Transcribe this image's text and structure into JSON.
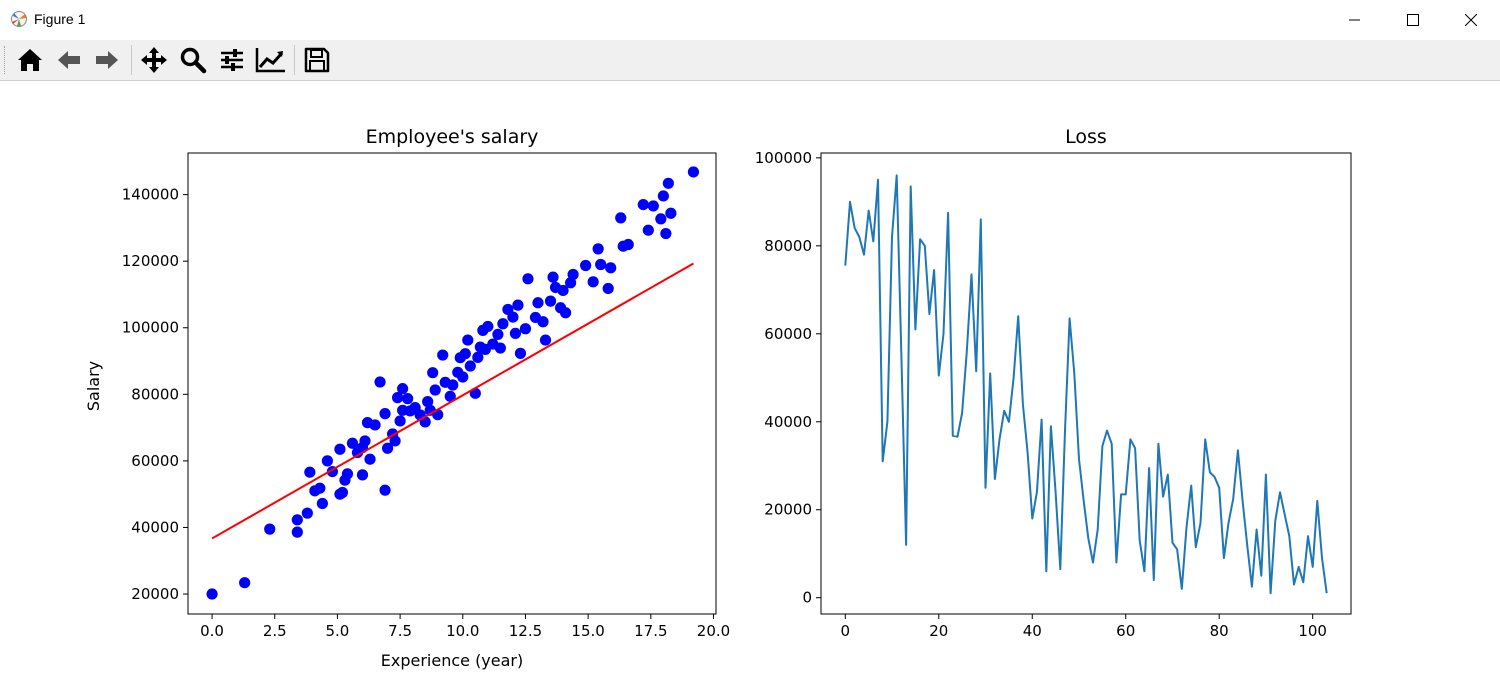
{
  "window": {
    "title": "Figure 1",
    "icons": {
      "app": "matplotlib-icon",
      "minimize": "minimize-icon",
      "maximize": "maximize-icon",
      "close": "close-icon"
    }
  },
  "toolbar": {
    "buttons": [
      {
        "name": "home",
        "icon": "home-icon"
      },
      {
        "name": "back",
        "icon": "arrow-left-icon"
      },
      {
        "name": "forward",
        "icon": "arrow-right-icon"
      },
      {
        "name": "pan",
        "icon": "move-icon"
      },
      {
        "name": "zoom",
        "icon": "magnifier-icon"
      },
      {
        "name": "configure-subplots",
        "icon": "sliders-icon"
      },
      {
        "name": "edit-axis",
        "icon": "line-chart-icon"
      },
      {
        "name": "save",
        "icon": "floppy-disk-icon"
      }
    ]
  },
  "chart_data": [
    {
      "type": "scatter",
      "title": "Employee's salary",
      "xlabel": "Experience (year)",
      "ylabel": "Salary",
      "xlim": [
        -0.96,
        20.1
      ],
      "ylim": [
        14000,
        152500
      ],
      "xticks": [
        0.0,
        2.5,
        5.0,
        7.5,
        10.0,
        12.5,
        15.0,
        17.5,
        20.0
      ],
      "xtick_labels": [
        "0.0",
        "2.5",
        "5.0",
        "7.5",
        "10.0",
        "12.5",
        "15.0",
        "17.5",
        "20.0"
      ],
      "yticks": [
        20000,
        40000,
        60000,
        80000,
        100000,
        120000,
        140000
      ],
      "ytick_labels": [
        "20000",
        "40000",
        "60000",
        "80000",
        "100000",
        "120000",
        "140000"
      ],
      "grid": false,
      "colors": {
        "points": "#0000ff",
        "line": "#ff0000"
      },
      "points": [
        [
          0.0,
          20000
        ],
        [
          1.3,
          23400
        ],
        [
          2.3,
          39500
        ],
        [
          3.4,
          38600
        ],
        [
          3.4,
          42300
        ],
        [
          3.8,
          44300
        ],
        [
          3.9,
          56600
        ],
        [
          4.1,
          51000
        ],
        [
          4.3,
          51800
        ],
        [
          4.4,
          47200
        ],
        [
          4.6,
          60000
        ],
        [
          4.8,
          56800
        ],
        [
          5.1,
          50000
        ],
        [
          5.1,
          63500
        ],
        [
          5.2,
          50500
        ],
        [
          5.3,
          54200
        ],
        [
          5.4,
          56100
        ],
        [
          5.6,
          65300
        ],
        [
          5.8,
          62500
        ],
        [
          6.0,
          64000
        ],
        [
          6.0,
          55800
        ],
        [
          6.1,
          66000
        ],
        [
          6.2,
          71500
        ],
        [
          6.3,
          60500
        ],
        [
          6.5,
          70800
        ],
        [
          6.7,
          83700
        ],
        [
          6.9,
          74200
        ],
        [
          6.9,
          51200
        ],
        [
          7.0,
          63800
        ],
        [
          7.2,
          68100
        ],
        [
          7.3,
          66000
        ],
        [
          7.4,
          79000
        ],
        [
          7.5,
          72000
        ],
        [
          7.6,
          75200
        ],
        [
          7.6,
          81700
        ],
        [
          7.8,
          78700
        ],
        [
          7.9,
          75000
        ],
        [
          8.1,
          76000
        ],
        [
          8.3,
          73800
        ],
        [
          8.5,
          71700
        ],
        [
          8.6,
          77800
        ],
        [
          8.7,
          75200
        ],
        [
          8.8,
          86500
        ],
        [
          8.9,
          81300
        ],
        [
          9.0,
          73900
        ],
        [
          9.2,
          91800
        ],
        [
          9.3,
          83600
        ],
        [
          9.5,
          79400
        ],
        [
          9.6,
          82800
        ],
        [
          9.8,
          86600
        ],
        [
          9.9,
          91000
        ],
        [
          10.0,
          85200
        ],
        [
          10.1,
          92200
        ],
        [
          10.2,
          96300
        ],
        [
          10.3,
          88500
        ],
        [
          10.5,
          80300
        ],
        [
          10.6,
          91100
        ],
        [
          10.7,
          94200
        ],
        [
          10.8,
          99200
        ],
        [
          10.9,
          93500
        ],
        [
          11.0,
          100400
        ],
        [
          11.2,
          95100
        ],
        [
          11.4,
          98000
        ],
        [
          11.5,
          93900
        ],
        [
          11.6,
          101200
        ],
        [
          11.8,
          105500
        ],
        [
          12.0,
          103200
        ],
        [
          12.1,
          98300
        ],
        [
          12.2,
          106800
        ],
        [
          12.3,
          92300
        ],
        [
          12.5,
          99700
        ],
        [
          12.6,
          114700
        ],
        [
          12.9,
          103100
        ],
        [
          13.0,
          107500
        ],
        [
          13.2,
          101800
        ],
        [
          13.3,
          96300
        ],
        [
          13.5,
          108000
        ],
        [
          13.6,
          115200
        ],
        [
          13.7,
          112100
        ],
        [
          13.9,
          106000
        ],
        [
          14.0,
          111200
        ],
        [
          14.1,
          104500
        ],
        [
          14.3,
          113500
        ],
        [
          14.4,
          116000
        ],
        [
          14.9,
          118700
        ],
        [
          15.2,
          113800
        ],
        [
          15.4,
          123700
        ],
        [
          15.5,
          119000
        ],
        [
          15.8,
          111800
        ],
        [
          15.9,
          118000
        ],
        [
          16.3,
          133000
        ],
        [
          16.4,
          124500
        ],
        [
          16.6,
          125000
        ],
        [
          17.2,
          137000
        ],
        [
          17.4,
          129300
        ],
        [
          17.6,
          136600
        ],
        [
          17.9,
          132700
        ],
        [
          18.0,
          139600
        ],
        [
          18.1,
          128300
        ],
        [
          18.2,
          143400
        ],
        [
          18.3,
          134400
        ],
        [
          19.2,
          146800
        ]
      ],
      "fit_line": [
        [
          0.0,
          36700
        ],
        [
          19.2,
          119300
        ]
      ]
    },
    {
      "type": "line",
      "title": "Loss",
      "xlabel": "",
      "ylabel": "",
      "xlim": [
        -5.2,
        108.2
      ],
      "ylim": [
        -3700,
        101100
      ],
      "xticks": [
        0,
        20,
        40,
        60,
        80,
        100
      ],
      "xtick_labels": [
        "0",
        "20",
        "40",
        "60",
        "80",
        "100"
      ],
      "yticks": [
        0,
        20000,
        40000,
        60000,
        80000,
        100000
      ],
      "ytick_labels": [
        "0",
        "20000",
        "40000",
        "60000",
        "80000",
        "100000"
      ],
      "grid": false,
      "colors": {
        "line": "#1f77b4"
      },
      "y": [
        75500,
        90000,
        84000,
        82000,
        78000,
        88000,
        81000,
        95000,
        31000,
        40000,
        82000,
        96000,
        55000,
        12000,
        93500,
        61000,
        81500,
        80000,
        64500,
        74500,
        50500,
        60000,
        87500,
        36800,
        36600,
        42000,
        56000,
        73500,
        51500,
        86000,
        25000,
        51000,
        27000,
        36000,
        42500,
        40000,
        50000,
        64000,
        44000,
        33000,
        18000,
        24000,
        40500,
        6000,
        39000,
        24000,
        6500,
        38000,
        63500,
        51000,
        31500,
        22000,
        13500,
        8000,
        15500,
        34500,
        38000,
        35000,
        8000,
        23500,
        23500,
        36000,
        34000,
        13000,
        6000,
        29500,
        4000,
        35000,
        23000,
        28000,
        12500,
        11000,
        2000,
        16000,
        25500,
        11500,
        17000,
        36000,
        28500,
        27500,
        25000,
        9000,
        17000,
        22500,
        33500,
        22000,
        12000,
        2500,
        15500,
        5000,
        28000,
        1000,
        17500,
        24000,
        19000,
        14000,
        3000,
        7000,
        3500,
        14000,
        7000,
        22000,
        9000,
        1000
      ]
    }
  ]
}
